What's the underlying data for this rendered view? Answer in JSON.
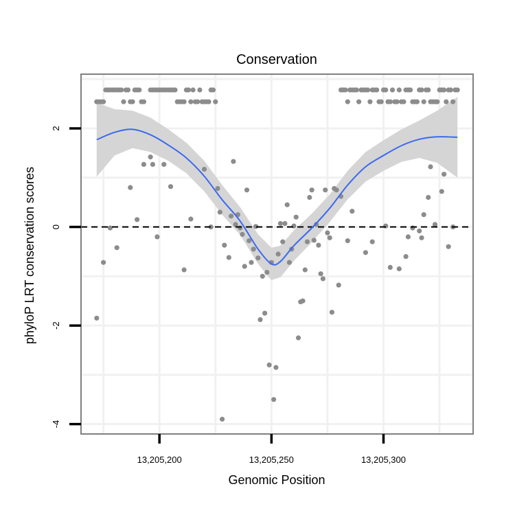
{
  "chart_data": {
    "type": "scatter",
    "title": "Conservation",
    "xlabel": "Genomic Position",
    "ylabel": "phyloP LRT conservation scores",
    "xlim": [
      13205165,
      13205340
    ],
    "ylim": [
      -4.2,
      3.1
    ],
    "x_ticks": [
      {
        "value": 13205200,
        "label": "13,205,200"
      },
      {
        "value": 13205250,
        "label": "13,205,250"
      },
      {
        "value": 13205300,
        "label": "13,205,300"
      }
    ],
    "y_ticks": [
      {
        "value": 2,
        "label": "2"
      },
      {
        "value": 0,
        "label": "0"
      },
      {
        "value": -2,
        "label": "-2"
      },
      {
        "value": -4,
        "label": "-4"
      }
    ],
    "reference_line": {
      "y": 0,
      "style": "dashed",
      "color": "#000000"
    },
    "grid": true,
    "colors": {
      "points": "#8c8c8c",
      "smooth": "#3a68f0",
      "band": "#d3d3d3",
      "panel_border": "#7f7f7f",
      "grid": "#f1f1f1"
    },
    "points": [
      {
        "x": 13205172,
        "y": 2.54
      },
      {
        "x": 13205173,
        "y": 2.54
      },
      {
        "x": 13205174,
        "y": 2.54
      },
      {
        "x": 13205175,
        "y": 2.54
      },
      {
        "x": 13205176,
        "y": 2.78
      },
      {
        "x": 13205177,
        "y": 2.78
      },
      {
        "x": 13205178,
        "y": 2.78
      },
      {
        "x": 13205179,
        "y": 2.78
      },
      {
        "x": 13205180,
        "y": 2.78
      },
      {
        "x": 13205181,
        "y": 2.78
      },
      {
        "x": 13205182,
        "y": 2.78
      },
      {
        "x": 13205183,
        "y": 2.78
      },
      {
        "x": 13205184,
        "y": 2.54
      },
      {
        "x": 13205185,
        "y": 2.78
      },
      {
        "x": 13205186,
        "y": 2.78
      },
      {
        "x": 13205187,
        "y": 2.54
      },
      {
        "x": 13205188,
        "y": 2.54
      },
      {
        "x": 13205189,
        "y": 2.78
      },
      {
        "x": 13205190,
        "y": 2.78
      },
      {
        "x": 13205191,
        "y": 2.78
      },
      {
        "x": 13205192,
        "y": 2.54
      },
      {
        "x": 13205193,
        "y": 2.54
      },
      {
        "x": 13205196,
        "y": 2.78
      },
      {
        "x": 13205197,
        "y": 2.78
      },
      {
        "x": 13205198,
        "y": 2.78
      },
      {
        "x": 13205199,
        "y": 2.78
      },
      {
        "x": 13205200,
        "y": 2.78
      },
      {
        "x": 13205201,
        "y": 2.78
      },
      {
        "x": 13205202,
        "y": 2.78
      },
      {
        "x": 13205203,
        "y": 2.78
      },
      {
        "x": 13205204,
        "y": 2.78
      },
      {
        "x": 13205205,
        "y": 2.78
      },
      {
        "x": 13205206,
        "y": 2.78
      },
      {
        "x": 13205207,
        "y": 2.78
      },
      {
        "x": 13205208,
        "y": 2.54
      },
      {
        "x": 13205209,
        "y": 2.54
      },
      {
        "x": 13205210,
        "y": 2.54
      },
      {
        "x": 13205211,
        "y": 2.54
      },
      {
        "x": 13205212,
        "y": 2.78
      },
      {
        "x": 13205213,
        "y": 2.78
      },
      {
        "x": 13205214,
        "y": 2.54
      },
      {
        "x": 13205215,
        "y": 2.78
      },
      {
        "x": 13205216,
        "y": 2.54
      },
      {
        "x": 13205217,
        "y": 2.54
      },
      {
        "x": 13205218,
        "y": 2.78
      },
      {
        "x": 13205219,
        "y": 2.54
      },
      {
        "x": 13205220,
        "y": 2.54
      },
      {
        "x": 13205221,
        "y": 2.54
      },
      {
        "x": 13205222,
        "y": 2.54
      },
      {
        "x": 13205223,
        "y": 2.78
      },
      {
        "x": 13205224,
        "y": 2.78
      },
      {
        "x": 13205225,
        "y": 2.54
      },
      {
        "x": 13205281,
        "y": 2.78
      },
      {
        "x": 13205282,
        "y": 2.78
      },
      {
        "x": 13205283,
        "y": 2.78
      },
      {
        "x": 13205284,
        "y": 2.54
      },
      {
        "x": 13205285,
        "y": 2.78
      },
      {
        "x": 13205286,
        "y": 2.78
      },
      {
        "x": 13205287,
        "y": 2.78
      },
      {
        "x": 13205288,
        "y": 2.78
      },
      {
        "x": 13205289,
        "y": 2.54
      },
      {
        "x": 13205290,
        "y": 2.78
      },
      {
        "x": 13205291,
        "y": 2.78
      },
      {
        "x": 13205292,
        "y": 2.78
      },
      {
        "x": 13205293,
        "y": 2.78
      },
      {
        "x": 13205294,
        "y": 2.54
      },
      {
        "x": 13205295,
        "y": 2.78
      },
      {
        "x": 13205296,
        "y": 2.78
      },
      {
        "x": 13205297,
        "y": 2.78
      },
      {
        "x": 13205298,
        "y": 2.54
      },
      {
        "x": 13205299,
        "y": 2.54
      },
      {
        "x": 13205300,
        "y": 2.78
      },
      {
        "x": 13205301,
        "y": 2.78
      },
      {
        "x": 13205302,
        "y": 2.54
      },
      {
        "x": 13205303,
        "y": 2.54
      },
      {
        "x": 13205304,
        "y": 2.78
      },
      {
        "x": 13205305,
        "y": 2.54
      },
      {
        "x": 13205306,
        "y": 2.54
      },
      {
        "x": 13205307,
        "y": 2.78
      },
      {
        "x": 13205308,
        "y": 2.54
      },
      {
        "x": 13205309,
        "y": 2.54
      },
      {
        "x": 13205310,
        "y": 2.78
      },
      {
        "x": 13205311,
        "y": 2.78
      },
      {
        "x": 13205312,
        "y": 2.78
      },
      {
        "x": 13205313,
        "y": 2.54
      },
      {
        "x": 13205314,
        "y": 2.54
      },
      {
        "x": 13205315,
        "y": 2.54
      },
      {
        "x": 13205316,
        "y": 2.78
      },
      {
        "x": 13205317,
        "y": 2.78
      },
      {
        "x": 13205318,
        "y": 2.54
      },
      {
        "x": 13205319,
        "y": 2.78
      },
      {
        "x": 13205320,
        "y": 2.78
      },
      {
        "x": 13205321,
        "y": 2.54
      },
      {
        "x": 13205322,
        "y": 2.54
      },
      {
        "x": 13205323,
        "y": 2.54
      },
      {
        "x": 13205324,
        "y": 2.54
      },
      {
        "x": 13205325,
        "y": 2.78
      },
      {
        "x": 13205326,
        "y": 2.78
      },
      {
        "x": 13205327,
        "y": 2.78
      },
      {
        "x": 13205328,
        "y": 2.54
      },
      {
        "x": 13205329,
        "y": 2.78
      },
      {
        "x": 13205330,
        "y": 2.78
      },
      {
        "x": 13205331,
        "y": 2.54
      },
      {
        "x": 13205332,
        "y": 2.78
      },
      {
        "x": 13205333,
        "y": 2.78
      },
      {
        "x": 13205172,
        "y": -1.85
      },
      {
        "x": 13205175,
        "y": -0.72
      },
      {
        "x": 13205178,
        "y": -0.02
      },
      {
        "x": 13205181,
        "y": -0.42
      },
      {
        "x": 13205187,
        "y": 0.8
      },
      {
        "x": 13205190,
        "y": 0.15
      },
      {
        "x": 13205193,
        "y": 1.27
      },
      {
        "x": 13205196,
        "y": 1.42
      },
      {
        "x": 13205197,
        "y": 1.27
      },
      {
        "x": 13205199,
        "y": -0.2
      },
      {
        "x": 13205202,
        "y": 1.27
      },
      {
        "x": 13205205,
        "y": 0.82
      },
      {
        "x": 13205211,
        "y": -0.87
      },
      {
        "x": 13205214,
        "y": 0.16
      },
      {
        "x": 13205220,
        "y": 1.17
      },
      {
        "x": 13205223,
        "y": 0.0
      },
      {
        "x": 13205226,
        "y": 0.78
      },
      {
        "x": 13205227,
        "y": 0.3
      },
      {
        "x": 13205228,
        "y": -3.9
      },
      {
        "x": 13205229,
        "y": -0.37
      },
      {
        "x": 13205231,
        "y": -0.62
      },
      {
        "x": 13205232,
        "y": 0.22
      },
      {
        "x": 13205233,
        "y": 1.33
      },
      {
        "x": 13205234,
        "y": 0.05
      },
      {
        "x": 13205235,
        "y": 0.25
      },
      {
        "x": 13205236,
        "y": -0.02
      },
      {
        "x": 13205237,
        "y": -0.15
      },
      {
        "x": 13205238,
        "y": -0.8
      },
      {
        "x": 13205239,
        "y": 0.75
      },
      {
        "x": 13205240,
        "y": -0.28
      },
      {
        "x": 13205241,
        "y": -0.72
      },
      {
        "x": 13205242,
        "y": -0.45
      },
      {
        "x": 13205243,
        "y": 0.01
      },
      {
        "x": 13205244,
        "y": -0.63
      },
      {
        "x": 13205245,
        "y": -1.88
      },
      {
        "x": 13205246,
        "y": -1.0
      },
      {
        "x": 13205247,
        "y": -1.75
      },
      {
        "x": 13205248,
        "y": -0.92
      },
      {
        "x": 13205249,
        "y": -2.8
      },
      {
        "x": 13205250,
        "y": -0.72
      },
      {
        "x": 13205251,
        "y": -3.5
      },
      {
        "x": 13205252,
        "y": -2.85
      },
      {
        "x": 13205253,
        "y": -0.55
      },
      {
        "x": 13205254,
        "y": 0.07
      },
      {
        "x": 13205255,
        "y": -0.3
      },
      {
        "x": 13205256,
        "y": 0.07
      },
      {
        "x": 13205257,
        "y": 0.45
      },
      {
        "x": 13205258,
        "y": -0.72
      },
      {
        "x": 13205259,
        "y": -0.45
      },
      {
        "x": 13205260,
        "y": 0.02
      },
      {
        "x": 13205261,
        "y": 0.2
      },
      {
        "x": 13205262,
        "y": -2.25
      },
      {
        "x": 13205263,
        "y": -1.52
      },
      {
        "x": 13205264,
        "y": -1.5
      },
      {
        "x": 13205265,
        "y": -0.87
      },
      {
        "x": 13205266,
        "y": -0.3
      },
      {
        "x": 13205267,
        "y": 0.6
      },
      {
        "x": 13205268,
        "y": 0.75
      },
      {
        "x": 13205269,
        "y": -0.27
      },
      {
        "x": 13205270,
        "y": 0.05
      },
      {
        "x": 13205271,
        "y": -0.37
      },
      {
        "x": 13205272,
        "y": -0.95
      },
      {
        "x": 13205273,
        "y": -1.05
      },
      {
        "x": 13205274,
        "y": 0.75
      },
      {
        "x": 13205275,
        "y": -0.12
      },
      {
        "x": 13205276,
        "y": -0.22
      },
      {
        "x": 13205277,
        "y": -1.73
      },
      {
        "x": 13205278,
        "y": 0.78
      },
      {
        "x": 13205279,
        "y": 0.75
      },
      {
        "x": 13205280,
        "y": -1.18
      },
      {
        "x": 13205281,
        "y": 0.62
      },
      {
        "x": 13205284,
        "y": -0.28
      },
      {
        "x": 13205286,
        "y": 0.32
      },
      {
        "x": 13205292,
        "y": -0.52
      },
      {
        "x": 13205295,
        "y": -0.3
      },
      {
        "x": 13205301,
        "y": 0.02
      },
      {
        "x": 13205303,
        "y": -0.82
      },
      {
        "x": 13205307,
        "y": -0.85
      },
      {
        "x": 13205310,
        "y": -0.6
      },
      {
        "x": 13205311,
        "y": -0.2
      },
      {
        "x": 13205313,
        "y": -0.02
      },
      {
        "x": 13205316,
        "y": -0.08
      },
      {
        "x": 13205317,
        "y": -0.22
      },
      {
        "x": 13205318,
        "y": 0.25
      },
      {
        "x": 13205320,
        "y": 0.6
      },
      {
        "x": 13205321,
        "y": 1.22
      },
      {
        "x": 13205323,
        "y": 0.05
      },
      {
        "x": 13205326,
        "y": 0.72
      },
      {
        "x": 13205327,
        "y": 1.07
      },
      {
        "x": 13205329,
        "y": -0.4
      },
      {
        "x": 13205331,
        "y": 0.0
      }
    ],
    "smooth": [
      {
        "x": 13205172,
        "y": 1.77,
        "lo": 1.02,
        "hi": 2.52
      },
      {
        "x": 13205180,
        "y": 1.92,
        "lo": 1.45,
        "hi": 2.39
      },
      {
        "x": 13205188,
        "y": 1.98,
        "lo": 1.6,
        "hi": 2.36
      },
      {
        "x": 13205196,
        "y": 1.87,
        "lo": 1.52,
        "hi": 2.22
      },
      {
        "x": 13205204,
        "y": 1.66,
        "lo": 1.34,
        "hi": 1.98
      },
      {
        "x": 13205212,
        "y": 1.4,
        "lo": 1.09,
        "hi": 1.71
      },
      {
        "x": 13205220,
        "y": 1.03,
        "lo": 0.72,
        "hi": 1.34
      },
      {
        "x": 13205228,
        "y": 0.55,
        "lo": 0.25,
        "hi": 0.85
      },
      {
        "x": 13205236,
        "y": 0.12,
        "lo": -0.16,
        "hi": 0.4
      },
      {
        "x": 13205244,
        "y": -0.45,
        "lo": -0.75,
        "hi": -0.15
      },
      {
        "x": 13205250,
        "y": -0.75,
        "lo": -1.08,
        "hi": -0.42
      },
      {
        "x": 13205254,
        "y": -0.7,
        "lo": -1.02,
        "hi": -0.38
      },
      {
        "x": 13205260,
        "y": -0.38,
        "lo": -0.69,
        "hi": -0.07
      },
      {
        "x": 13205268,
        "y": -0.02,
        "lo": -0.31,
        "hi": 0.27
      },
      {
        "x": 13205276,
        "y": 0.38,
        "lo": 0.1,
        "hi": 0.66
      },
      {
        "x": 13205284,
        "y": 0.85,
        "lo": 0.56,
        "hi": 1.14
      },
      {
        "x": 13205292,
        "y": 1.22,
        "lo": 0.92,
        "hi": 1.52
      },
      {
        "x": 13205300,
        "y": 1.45,
        "lo": 1.14,
        "hi": 1.76
      },
      {
        "x": 13205308,
        "y": 1.65,
        "lo": 1.32,
        "hi": 1.98
      },
      {
        "x": 13205316,
        "y": 1.78,
        "lo": 1.4,
        "hi": 2.16
      },
      {
        "x": 13205324,
        "y": 1.83,
        "lo": 1.3,
        "hi": 2.36
      },
      {
        "x": 13205333,
        "y": 1.82,
        "lo": 1.0,
        "hi": 2.64
      }
    ]
  }
}
